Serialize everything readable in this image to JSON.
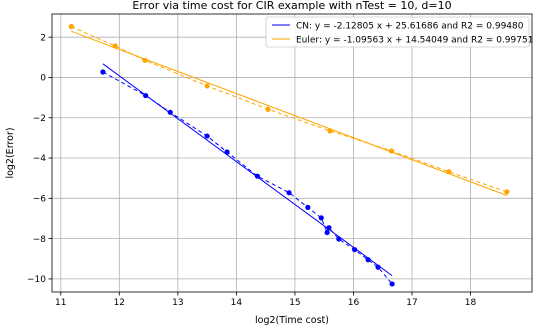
{
  "chart_data": {
    "type": "line",
    "title": "Error via time cost for CIR example with nTest = 10, d=10",
    "xlabel": "log2(Time cost)",
    "ylabel": "log2(Error)",
    "xlim": [
      10.85,
      19.05
    ],
    "ylim": [
      -10.65,
      3.15
    ],
    "xticks": [
      11,
      12,
      13,
      14,
      15,
      16,
      17,
      18
    ],
    "yticks": [
      -10,
      -8,
      -6,
      -4,
      -2,
      0,
      2
    ],
    "grid": true,
    "legend_position": "top-right",
    "series": [
      {
        "name": "CN: y = -2.12805 x + 25.61686 and R2 = 0.99480",
        "color": "#0000ff",
        "slope": -2.12805,
        "intercept": 25.61686,
        "fit_x_range": [
          11.72,
          16.66
        ],
        "points": [
          [
            11.72,
            0.27
          ],
          [
            12.45,
            -0.9
          ],
          [
            12.87,
            -1.73
          ],
          [
            13.5,
            -2.91
          ],
          [
            13.84,
            -3.7
          ],
          [
            14.36,
            -4.9
          ],
          [
            14.9,
            -5.72
          ],
          [
            15.22,
            -6.45
          ],
          [
            15.45,
            -6.97
          ],
          [
            15.55,
            -7.7
          ],
          [
            15.58,
            -7.46
          ],
          [
            15.75,
            -8.02
          ],
          [
            16.02,
            -8.55
          ],
          [
            16.25,
            -9.05
          ],
          [
            16.42,
            -9.42
          ],
          [
            16.66,
            -10.25
          ]
        ]
      },
      {
        "name": "Euler: y = -1.09563 x + 14.54049 and R2 = 0.99751",
        "color": "#ffa500",
        "slope": -1.09563,
        "intercept": 14.54049,
        "fit_x_range": [
          11.18,
          18.62
        ],
        "points": [
          [
            11.18,
            2.53
          ],
          [
            11.93,
            1.56
          ],
          [
            12.44,
            0.85
          ],
          [
            13.5,
            -0.42
          ],
          [
            14.54,
            -1.58
          ],
          [
            15.6,
            -2.65
          ],
          [
            16.65,
            -3.65
          ],
          [
            17.63,
            -4.68
          ],
          [
            18.62,
            -5.68
          ]
        ]
      }
    ]
  }
}
